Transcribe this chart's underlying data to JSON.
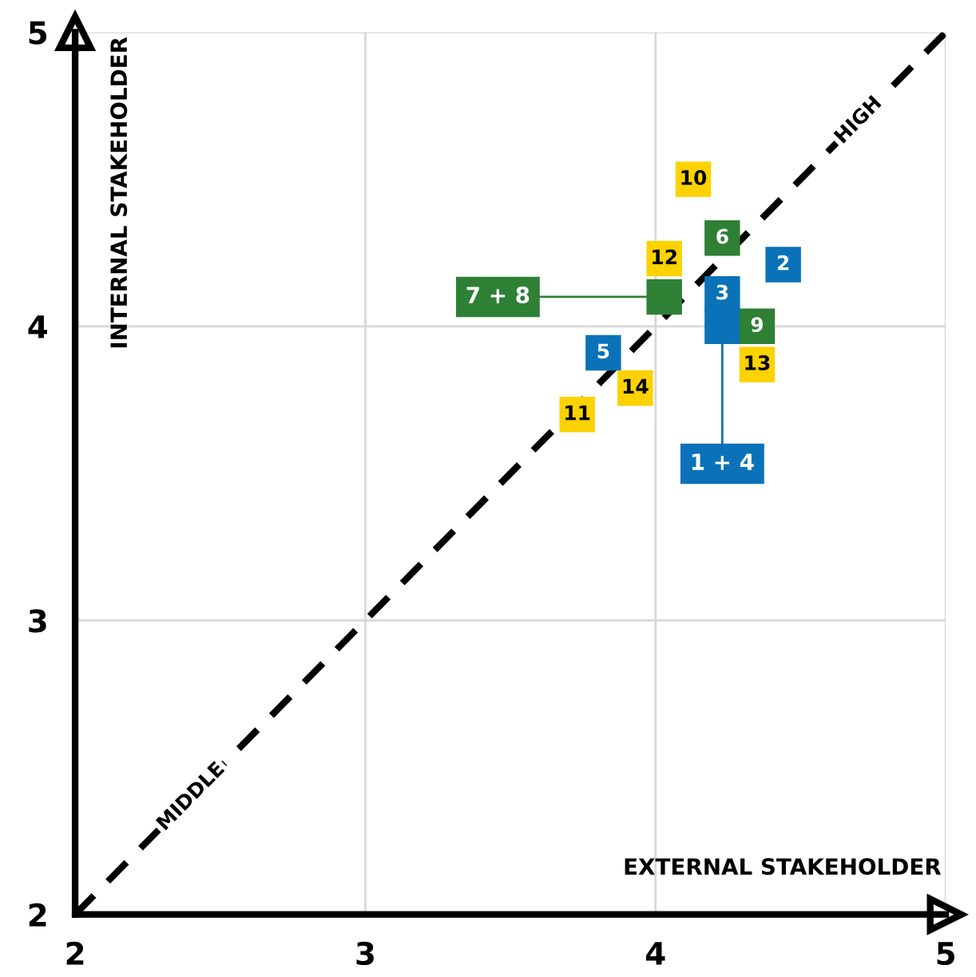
{
  "chart_data": {
    "type": "scatter",
    "xlabel": "EXTERNAL STAKEHOLDER",
    "ylabel": "INTERNAL STAKEHOLDER",
    "xlim": [
      2,
      5
    ],
    "ylim": [
      2,
      5
    ],
    "xticks": [
      2,
      3,
      4,
      5
    ],
    "yticks": [
      2,
      3,
      4,
      5
    ],
    "grid": true,
    "marker": "square",
    "series": [
      {
        "color": "#0a72b8",
        "x": [
          4.44,
          4.23,
          4.23,
          3.82
        ],
        "values": [
          4.21,
          4.11,
          4.0,
          3.91
        ]
      },
      {
        "color": "#2e8035",
        "x": [
          4.23,
          4.03,
          4.35
        ],
        "values": [
          4.3,
          4.1,
          4.0
        ]
      },
      {
        "color": "#fcd200",
        "x": [
          4.13,
          4.03,
          4.35,
          3.93,
          3.73
        ],
        "values": [
          4.5,
          4.23,
          3.87,
          3.79,
          3.7
        ]
      },
      {
        "type": "line",
        "color": "#000000",
        "line_style": "dashed",
        "marker": "none",
        "x": [
          2,
          5
        ],
        "values": [
          2,
          5
        ]
      }
    ],
    "annotations": [
      {
        "text": "2",
        "x": 4.44,
        "y": 4.21
      },
      {
        "text": "3",
        "x": 4.23,
        "y": 4.11
      },
      {
        "text": "5",
        "x": 3.82,
        "y": 3.91
      },
      {
        "text": "6",
        "x": 4.23,
        "y": 4.3
      },
      {
        "text": "9",
        "x": 4.35,
        "y": 4.0
      },
      {
        "text": "10",
        "x": 4.13,
        "y": 4.5
      },
      {
        "text": "12",
        "x": 4.03,
        "y": 4.23
      },
      {
        "text": "13",
        "x": 4.35,
        "y": 3.87
      },
      {
        "text": "14",
        "x": 3.93,
        "y": 3.79
      },
      {
        "text": "11",
        "x": 3.73,
        "y": 3.7
      },
      {
        "text": "MIDDLE",
        "x": 2.4,
        "y": 2.4
      },
      {
        "text": "HIGH",
        "x": 4.7,
        "y": 4.7
      },
      {
        "text": "7 + 8",
        "x": 4.03,
        "y": 4.1
      },
      {
        "text": "1 + 4",
        "x": 4.23,
        "y": 4.0
      }
    ]
  }
}
